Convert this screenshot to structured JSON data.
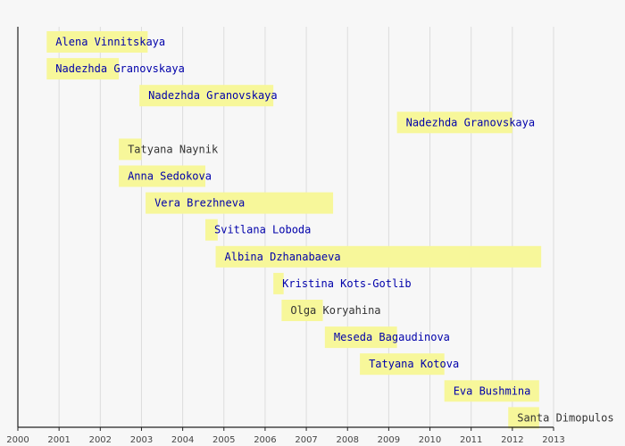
{
  "chart_data": {
    "type": "timeline",
    "xlim": [
      2000,
      2013
    ],
    "x_ticks": [
      "2000",
      "2001",
      "2002",
      "2003",
      "2004",
      "2005",
      "2006",
      "2007",
      "2008",
      "2009",
      "2010",
      "2011",
      "2012",
      "2013"
    ],
    "grid": true,
    "bar_color": "#f7f79a",
    "items": [
      {
        "label": "Alena Vinnitskaya",
        "start": 2000.7,
        "end": 2003.15,
        "link": true
      },
      {
        "label": "Nadezhda Granovskaya",
        "start": 2000.7,
        "end": 2002.45,
        "link": true
      },
      {
        "label": "Nadezhda Granovskaya",
        "start": 2002.95,
        "end": 2006.2,
        "link": true
      },
      {
        "label": "Nadezhda Granovskaya",
        "start": 2009.2,
        "end": 2012.0,
        "link": true
      },
      {
        "label": "Tatyana Naynik",
        "start": 2002.45,
        "end": 2003.0,
        "link": false
      },
      {
        "label": "Anna Sedokova",
        "start": 2002.45,
        "end": 2004.55,
        "link": true
      },
      {
        "label": "Vera Brezhneva",
        "start": 2003.1,
        "end": 2007.65,
        "link": true
      },
      {
        "label": "Svitlana Loboda",
        "start": 2004.55,
        "end": 2004.85,
        "link": true
      },
      {
        "label": "Albina Dzhanabaeva",
        "start": 2004.8,
        "end": 2012.7,
        "link": true
      },
      {
        "label": "Kristina Kots-Gotlib",
        "start": 2006.2,
        "end": 2006.45,
        "link": true
      },
      {
        "label": "Olga Koryahina",
        "start": 2006.4,
        "end": 2007.4,
        "link": false
      },
      {
        "label": "Meseda Bagaudinova",
        "start": 2007.45,
        "end": 2009.2,
        "link": true
      },
      {
        "label": "Tatyana Kotova",
        "start": 2008.3,
        "end": 2010.35,
        "link": true
      },
      {
        "label": "Eva Bushmina",
        "start": 2010.35,
        "end": 2012.65,
        "link": true
      },
      {
        "label": "Santa Dimopulos",
        "start": 2011.9,
        "end": 2012.65,
        "link": false
      }
    ]
  },
  "colors": {
    "link_text": "#0000aa",
    "plain_text": "#333333"
  }
}
